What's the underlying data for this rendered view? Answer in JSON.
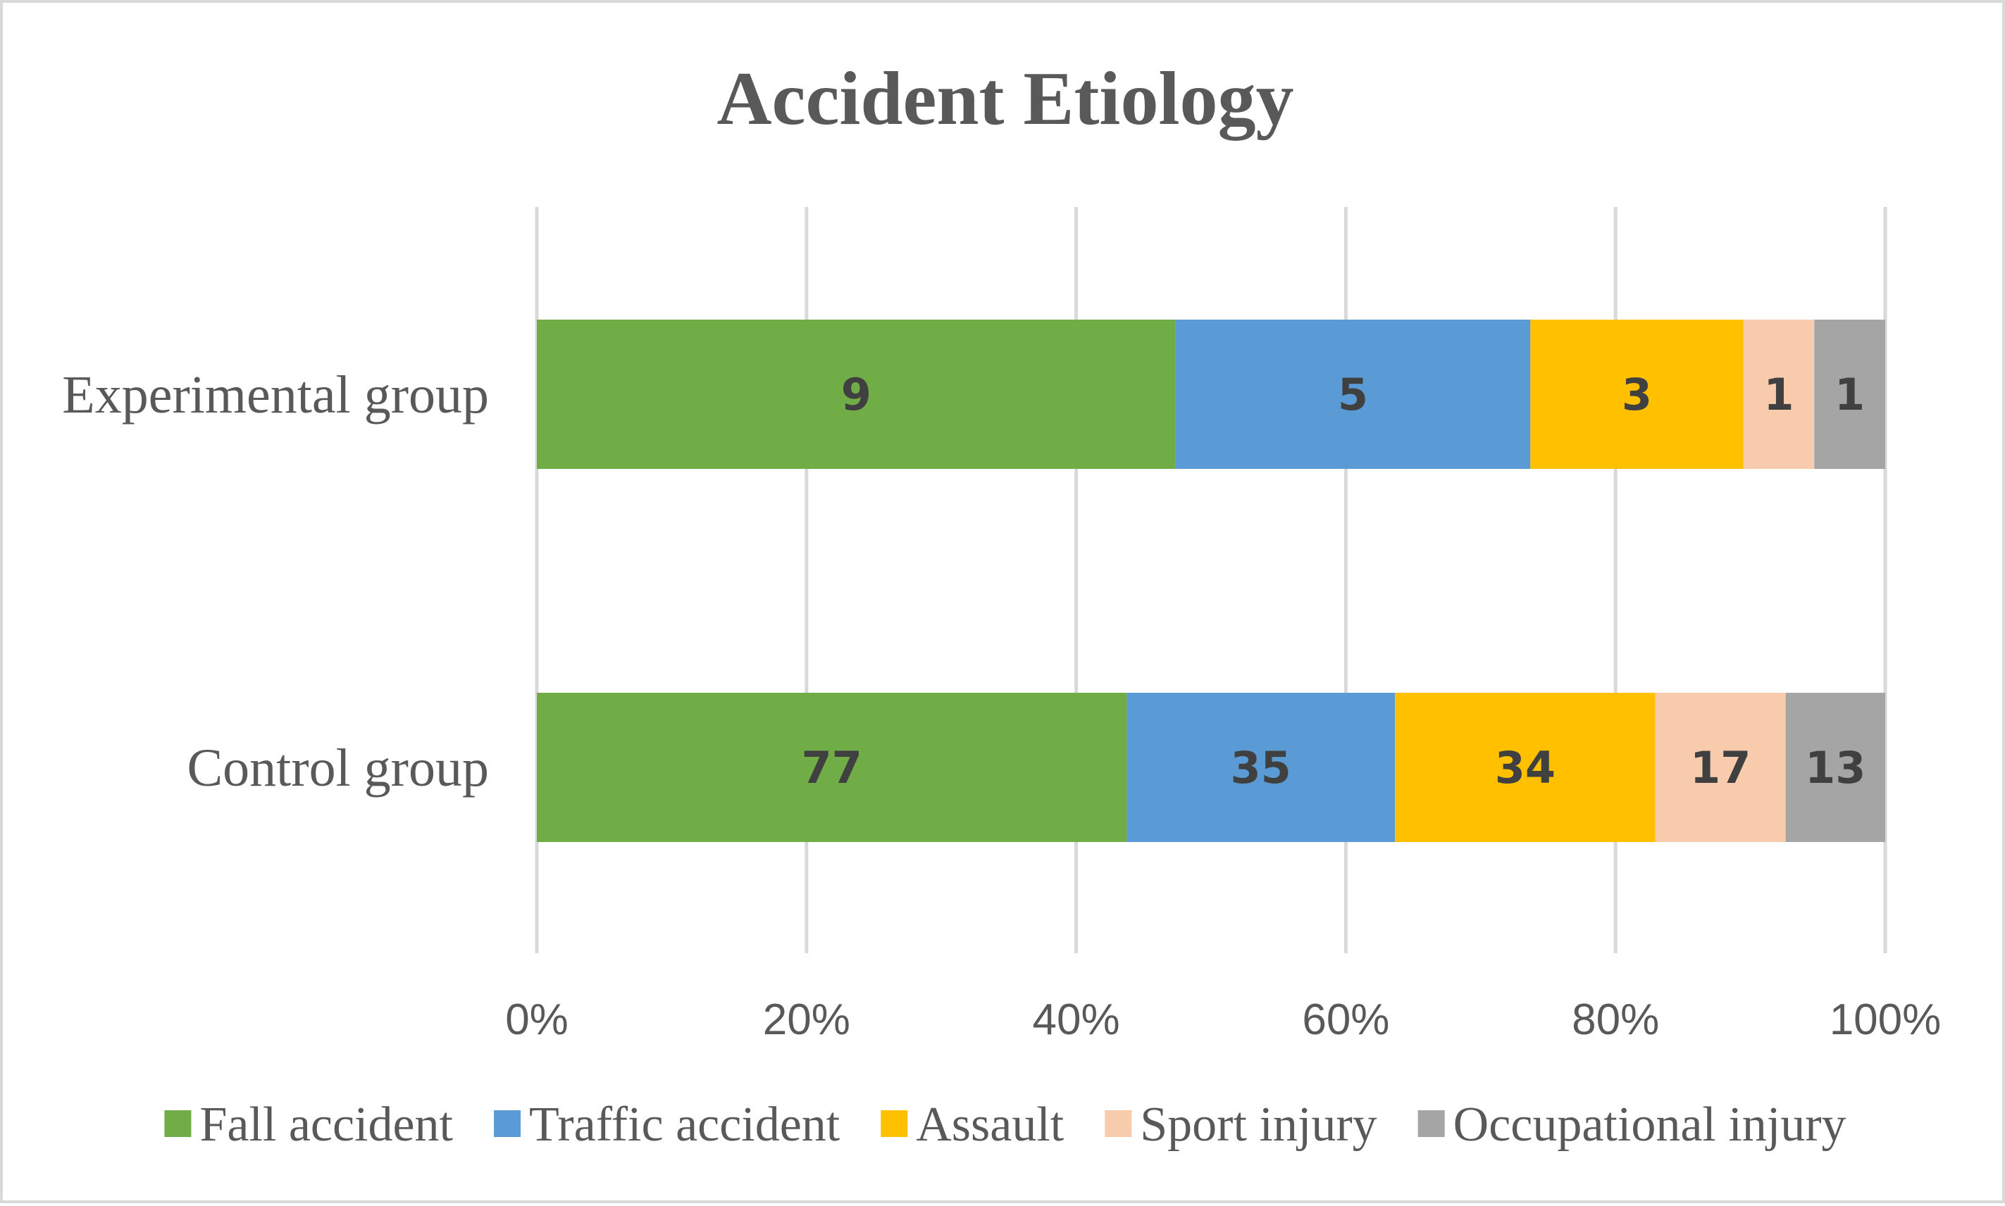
{
  "chart_data": {
    "type": "bar",
    "orientation": "horizontal",
    "stacking": "percent",
    "title": "Accident Etiology",
    "categories": [
      "Experimental group",
      "Control group"
    ],
    "series": [
      {
        "name": "Fall accident",
        "color": "#70ad47",
        "values": [
          9,
          77
        ]
      },
      {
        "name": "Traffic accident",
        "color": "#5b9bd5",
        "values": [
          5,
          35
        ]
      },
      {
        "name": "Assault",
        "color": "#ffc000",
        "values": [
          3,
          34
        ]
      },
      {
        "name": "Sport injury",
        "color": "#f8cbad",
        "values": [
          1,
          17
        ]
      },
      {
        "name": "Occupational injury",
        "color": "#a5a5a5",
        "values": [
          1,
          13
        ]
      }
    ],
    "xticks": [
      "0%",
      "20%",
      "40%",
      "60%",
      "80%",
      "100%"
    ],
    "xlim": [
      0,
      100
    ],
    "grid": true,
    "legend_position": "bottom"
  }
}
